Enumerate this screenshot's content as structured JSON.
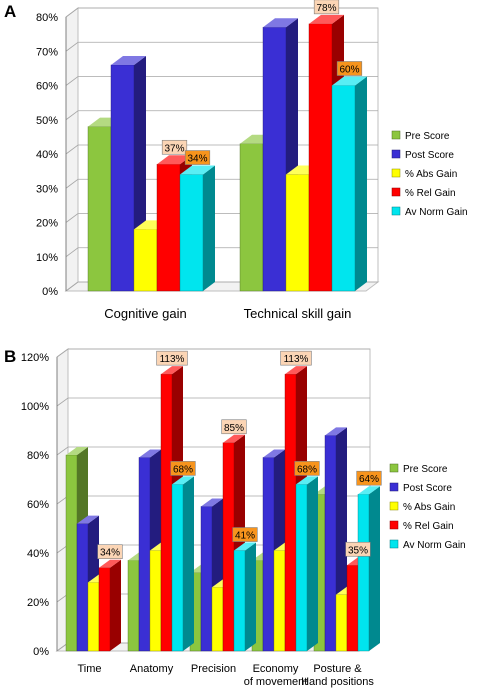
{
  "chart_data": [
    {
      "panel": "A",
      "type": "bar",
      "categories": [
        "Cognitive gain",
        "Technical skill gain"
      ],
      "ylim": [
        0,
        80
      ],
      "yticks": [
        "0%",
        "10%",
        "20%",
        "30%",
        "40%",
        "50%",
        "60%",
        "70%",
        "80%"
      ],
      "grid": true,
      "legend_position": "right",
      "series": [
        {
          "name": "Pre Score",
          "color": "#8cc63f",
          "values": [
            48,
            43
          ]
        },
        {
          "name": "Post Score",
          "color": "#3a2fd4",
          "values": [
            66,
            77
          ]
        },
        {
          "name": "% Abs Gain",
          "color": "#ffff00",
          "values": [
            18,
            34
          ]
        },
        {
          "name": "% Rel Gain",
          "color": "#ff0000",
          "values": [
            37,
            78
          ]
        },
        {
          "name": "Av Norm Gain",
          "color": "#00e5ee",
          "values": [
            34,
            60
          ]
        }
      ],
      "data_labels": [
        {
          "series": 3,
          "category": 0,
          "text": "37%",
          "style": "light"
        },
        {
          "series": 4,
          "category": 0,
          "text": "34%",
          "style": "dark"
        },
        {
          "series": 3,
          "category": 1,
          "text": "78%",
          "style": "light"
        },
        {
          "series": 4,
          "category": 1,
          "text": "60%",
          "style": "dark"
        }
      ]
    },
    {
      "panel": "B",
      "type": "bar",
      "categories": [
        [
          "Time"
        ],
        [
          "Anatomy"
        ],
        [
          "Precision"
        ],
        [
          "Economy",
          "of movement"
        ],
        [
          "Posture &",
          "Hand positions"
        ]
      ],
      "ylim": [
        0,
        120
      ],
      "yticks": [
        "0%",
        "20%",
        "40%",
        "60%",
        "80%",
        "100%",
        "120%"
      ],
      "grid": true,
      "legend_position": "right",
      "series": [
        {
          "name": "Pre Score",
          "color": "#8cc63f",
          "values": [
            80,
            37,
            32,
            37,
            64
          ]
        },
        {
          "name": "Post Score",
          "color": "#3a2fd4",
          "values": [
            52,
            79,
            59,
            79,
            88
          ]
        },
        {
          "name": "% Abs Gain",
          "color": "#ffff00",
          "values": [
            28,
            41,
            26,
            41,
            23
          ]
        },
        {
          "name": "% Rel Gain",
          "color": "#ff0000",
          "values": [
            34,
            113,
            85,
            113,
            35
          ]
        },
        {
          "name": "Av Norm Gain",
          "color": "#00e5ee",
          "values": [
            0,
            68,
            41,
            68,
            64
          ]
        }
      ],
      "data_labels": [
        {
          "series": 3,
          "category": 0,
          "text": "34%",
          "style": "light"
        },
        {
          "series": 3,
          "category": 1,
          "text": "113%",
          "style": "light"
        },
        {
          "series": 4,
          "category": 1,
          "text": "68%",
          "style": "dark"
        },
        {
          "series": 3,
          "category": 2,
          "text": "85%",
          "style": "light"
        },
        {
          "series": 4,
          "category": 2,
          "text": "41%",
          "style": "dark"
        },
        {
          "series": 3,
          "category": 3,
          "text": "113%",
          "style": "light"
        },
        {
          "series": 4,
          "category": 3,
          "text": "68%",
          "style": "dark"
        },
        {
          "series": 4,
          "category": 4,
          "text": "64%",
          "style": "dark"
        },
        {
          "series": 3,
          "category": 4,
          "text": "35%",
          "style": "light"
        }
      ]
    }
  ]
}
